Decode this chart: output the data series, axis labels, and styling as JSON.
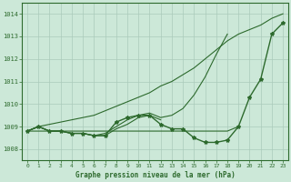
{
  "xlabel": "Graphe pression niveau de la mer (hPa)",
  "x": [
    0,
    1,
    2,
    3,
    4,
    5,
    6,
    7,
    8,
    9,
    10,
    11,
    12,
    13,
    14,
    15,
    16,
    17,
    18,
    19,
    20,
    21,
    22,
    23
  ],
  "line_main": [
    1008.8,
    1009.0,
    1008.8,
    1008.8,
    1008.7,
    1008.7,
    1008.6,
    1008.6,
    1009.2,
    1009.4,
    1009.5,
    1009.5,
    1009.1,
    1008.9,
    1008.9,
    1008.5,
    1008.3,
    1008.3,
    1008.4,
    1009.0,
    1010.3,
    1011.1,
    1013.1,
    1013.6
  ],
  "line_fan1": [
    1008.8,
    1009.0,
    1008.8,
    1008.8,
    1008.7,
    1008.7,
    1008.6,
    1008.7,
    1009.0,
    1009.3,
    1009.5,
    1009.6,
    1009.4,
    1009.5,
    1009.8,
    1010.4,
    1011.2,
    1012.2,
    1013.1,
    null,
    null,
    null,
    null,
    null
  ],
  "line_fan2": [
    1008.8,
    1009.0,
    1008.8,
    1008.8,
    1008.7,
    1008.7,
    1008.6,
    1008.6,
    1008.9,
    1009.1,
    1009.4,
    1009.5,
    1009.3,
    null,
    null,
    null,
    null,
    null,
    null,
    null,
    null,
    null,
    null,
    null
  ],
  "line_flat": [
    1008.8,
    1008.8,
    1008.8,
    1008.8,
    1008.8,
    1008.8,
    1008.8,
    1008.8,
    1008.8,
    1008.8,
    1008.8,
    1008.8,
    1008.8,
    1008.8,
    1008.8,
    1008.8,
    1008.8,
    1008.8,
    1008.8,
    1009.0,
    null,
    null,
    null,
    null
  ],
  "line_top": [
    1008.8,
    1009.0,
    1009.1,
    1009.2,
    1009.3,
    1009.4,
    1009.5,
    1009.7,
    1009.9,
    1010.1,
    1010.3,
    1010.5,
    1010.8,
    1011.0,
    1011.3,
    1011.6,
    1012.0,
    1012.4,
    1012.8,
    1013.1,
    1013.3,
    1013.5,
    1013.8,
    1014.0
  ],
  "ylim": [
    1007.5,
    1014.5
  ],
  "yticks": [
    1008,
    1009,
    1010,
    1011,
    1012,
    1013,
    1014
  ],
  "color": "#2d6a2d",
  "bg_color": "#cce8d8",
  "grid_color": "#aacaba"
}
